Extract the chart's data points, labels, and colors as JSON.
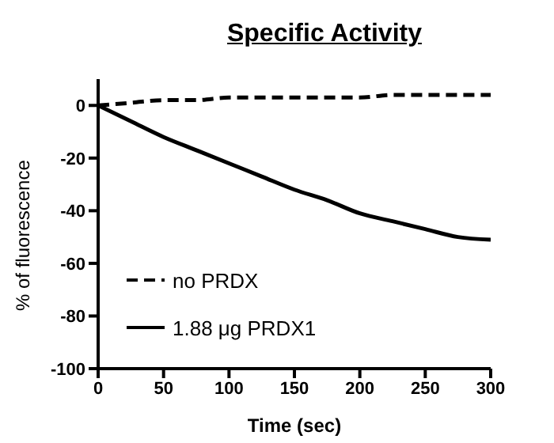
{
  "chart_data": {
    "type": "line",
    "title": "Specific Activity",
    "xlabel": "Time (sec)",
    "ylabel": "% of fluorescence",
    "x": [
      0,
      25,
      50,
      75,
      100,
      125,
      150,
      175,
      200,
      225,
      250,
      275,
      300
    ],
    "series": [
      {
        "name": "no PRDX",
        "color": "#000000",
        "line_style": "dashed",
        "values": [
          0,
          1,
          2,
          2,
          3,
          3,
          3,
          3,
          3,
          4,
          4,
          4,
          4
        ]
      },
      {
        "name": "1.88 μg PRDX1",
        "color": "#000000",
        "line_style": "solid",
        "values": [
          0,
          -6,
          -12,
          -17,
          -22,
          -27,
          -32,
          -36,
          -41,
          -44,
          -47,
          -50,
          -51
        ]
      }
    ],
    "xlim": [
      0,
      300
    ],
    "xticks": [
      0,
      50,
      100,
      150,
      200,
      250,
      300
    ],
    "ylim": [
      -100,
      10
    ],
    "yticks": [
      -100,
      -80,
      -60,
      -40,
      -20,
      0
    ],
    "grid": false,
    "legend": "bottom left",
    "marker": "none"
  }
}
